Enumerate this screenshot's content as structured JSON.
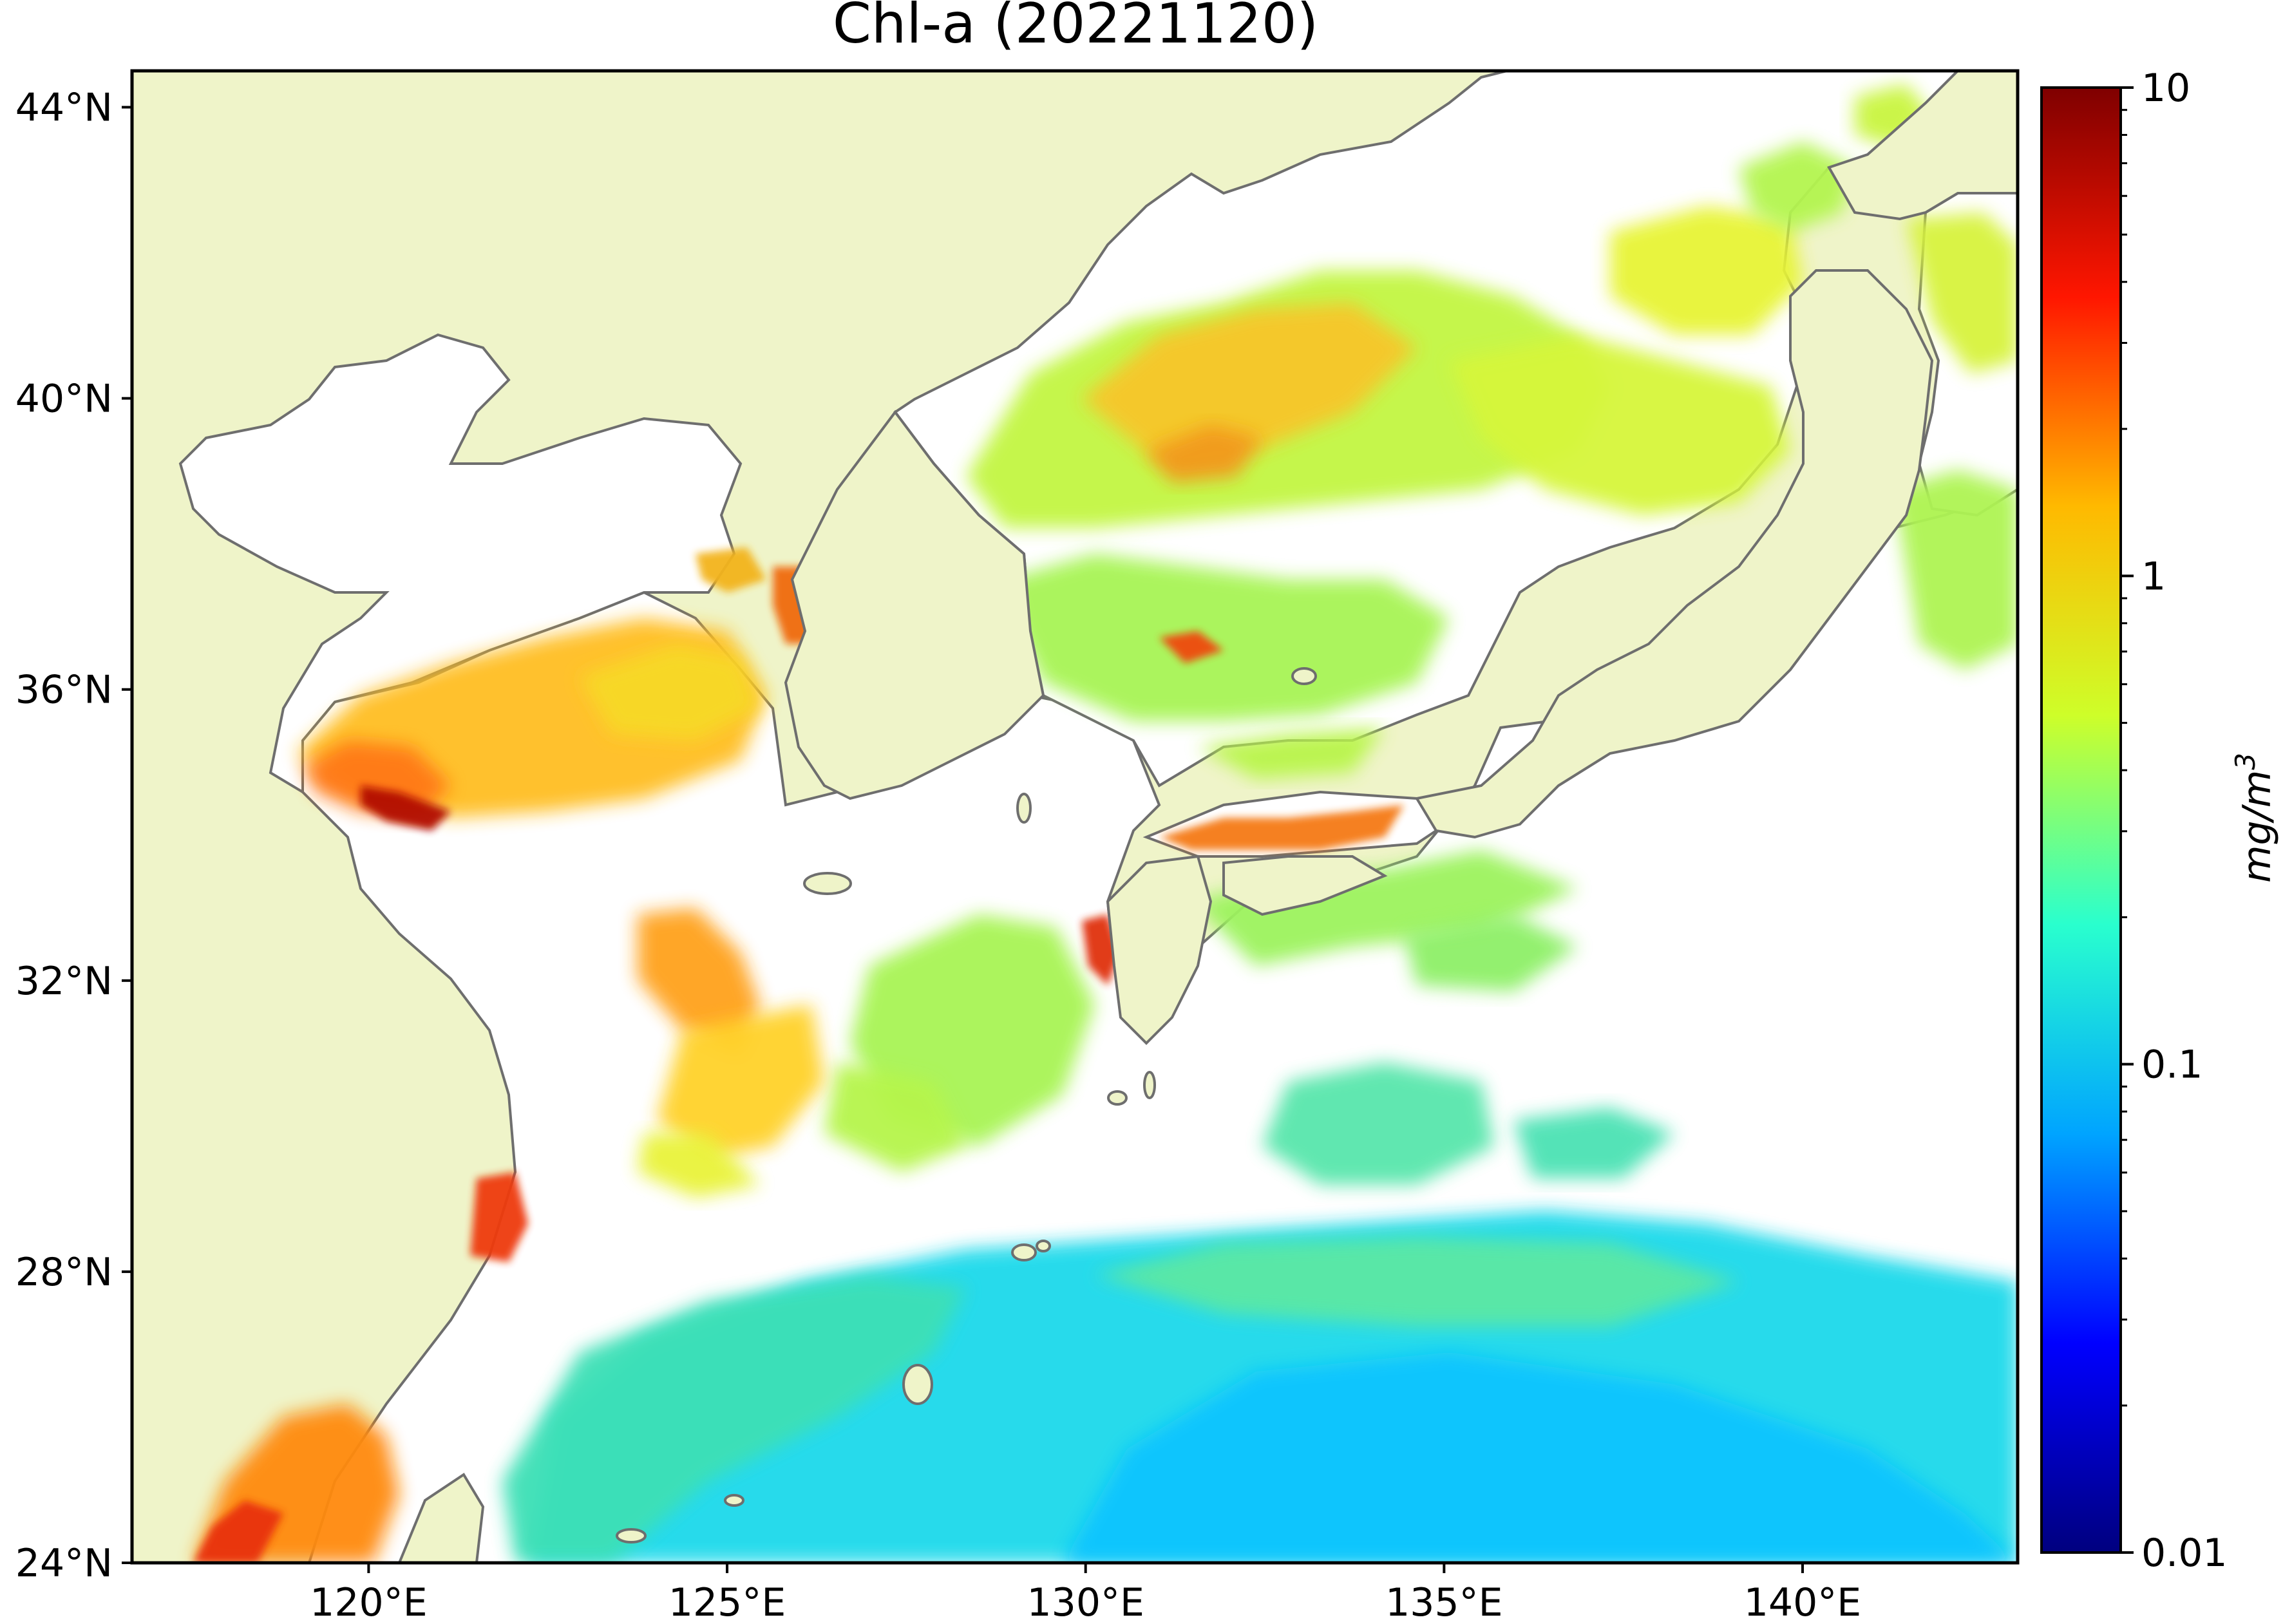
{
  "title": "Chl-a (20221120)",
  "map": {
    "lon_ticks": [
      {
        "value": 120,
        "label": "120°E"
      },
      {
        "value": 125,
        "label": "125°E"
      },
      {
        "value": 130,
        "label": "130°E"
      },
      {
        "value": 135,
        "label": "135°E"
      },
      {
        "value": 140,
        "label": "140°E"
      }
    ],
    "lat_ticks": [
      {
        "value": 24,
        "label": "24°N"
      },
      {
        "value": 28,
        "label": "28°N"
      },
      {
        "value": 32,
        "label": "32°N"
      },
      {
        "value": 36,
        "label": "36°N"
      },
      {
        "value": 40,
        "label": "40°N"
      },
      {
        "value": 44,
        "label": "44°N"
      }
    ],
    "colors": {
      "land": "#eff4c9",
      "coast": "#6e6e6e",
      "no_data": "#ffffff"
    }
  },
  "colorbar": {
    "label": "mg/m",
    "label_superscript": "3",
    "scale": "log",
    "range": [
      0.01,
      10
    ],
    "ticks": [
      {
        "value": 10,
        "label": "10"
      },
      {
        "value": 1,
        "label": "1"
      },
      {
        "value": 0.1,
        "label": "0.1"
      },
      {
        "value": 0.01,
        "label": "0.01"
      }
    ],
    "colormap": "jet",
    "stops": [
      "#00007f",
      "#0000ff",
      "#00a4ff",
      "#29ffce",
      "#cefe29",
      "#ffb900",
      "#ff1600",
      "#7f0000"
    ]
  }
}
